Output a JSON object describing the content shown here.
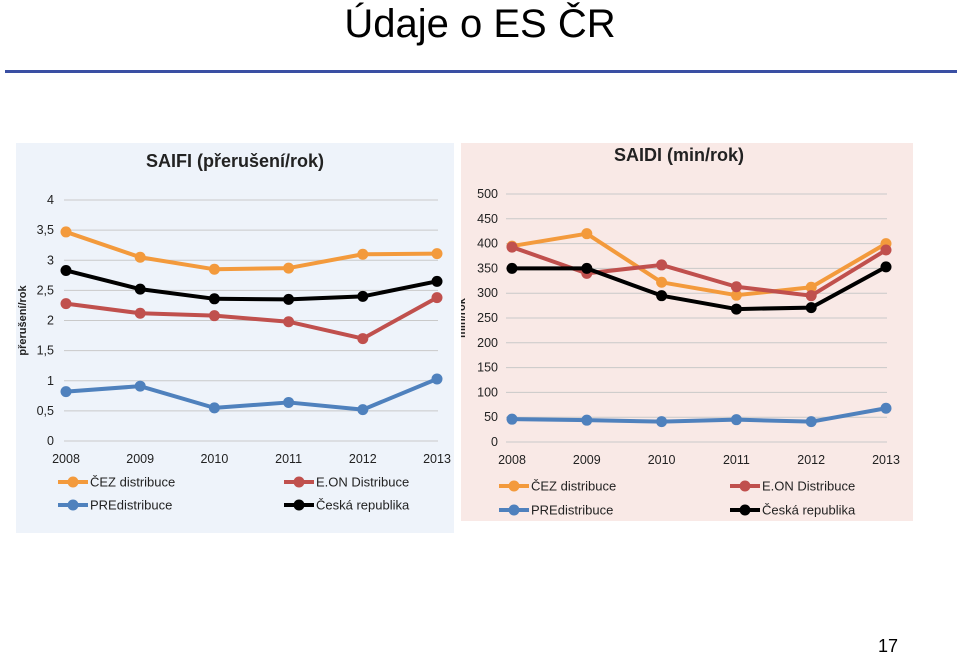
{
  "slide": {
    "title": "Údaje o ES ČR",
    "page_number": "17"
  },
  "colors": {
    "title_rule": "#3a4fa3"
  },
  "chart_data": [
    {
      "type": "line",
      "title": "SAIFI (přerušení/rok)",
      "xlabel": "",
      "ylabel": "přerušení/rok",
      "categories": [
        "2008",
        "2009",
        "2010",
        "2011",
        "2012",
        "2013"
      ],
      "ylim": [
        0,
        4
      ],
      "yticks": [
        0,
        0.5,
        1,
        1.5,
        2,
        2.5,
        3,
        3.5,
        4
      ],
      "ytick_labels": [
        "0",
        "0,5",
        "1",
        "1,5",
        "2",
        "2,5",
        "3",
        "3,5",
        "4"
      ],
      "grid": true,
      "background": "#eef3fa",
      "legend_position": "bottom",
      "series": [
        {
          "name": "ČEZ distribuce",
          "color": "#f39a3c",
          "values": [
            3.47,
            3.05,
            2.85,
            2.87,
            3.1,
            3.11
          ]
        },
        {
          "name": "E.ON Distribuce",
          "color": "#c0504d",
          "values": [
            2.28,
            2.12,
            2.08,
            1.98,
            1.7,
            2.38
          ]
        },
        {
          "name": "PREdistribuce",
          "color": "#4f81bd",
          "values": [
            0.82,
            0.91,
            0.55,
            0.64,
            0.52,
            1.03
          ]
        },
        {
          "name": "Česká republika",
          "color": "#000000",
          "values": [
            2.83,
            2.52,
            2.36,
            2.35,
            2.4,
            2.65
          ]
        }
      ]
    },
    {
      "type": "line",
      "title": "SAIDI (min/rok)",
      "xlabel": "",
      "ylabel": "min/rok",
      "categories": [
        "2008",
        "2009",
        "2010",
        "2011",
        "2012",
        "2013"
      ],
      "ylim": [
        0,
        500
      ],
      "yticks": [
        0,
        50,
        100,
        150,
        200,
        250,
        300,
        350,
        400,
        450,
        500
      ],
      "ytick_labels": [
        "0",
        "50",
        "100",
        "150",
        "200",
        "250",
        "300",
        "350",
        "400",
        "450",
        "500"
      ],
      "grid": true,
      "background": "#f9e9e6",
      "legend_position": "bottom",
      "series": [
        {
          "name": "ČEZ distribuce",
          "color": "#f39a3c",
          "values": [
            395,
            420,
            322,
            296,
            312,
            400
          ]
        },
        {
          "name": "E.ON Distribuce",
          "color": "#c0504d",
          "values": [
            393,
            340,
            357,
            313,
            295,
            387
          ]
        },
        {
          "name": "PREdistribuce",
          "color": "#4f81bd",
          "values": [
            46,
            44,
            41,
            45,
            41,
            68
          ]
        },
        {
          "name": "Česká republika",
          "color": "#000000",
          "values": [
            350,
            350,
            295,
            268,
            271,
            353
          ]
        }
      ]
    }
  ]
}
